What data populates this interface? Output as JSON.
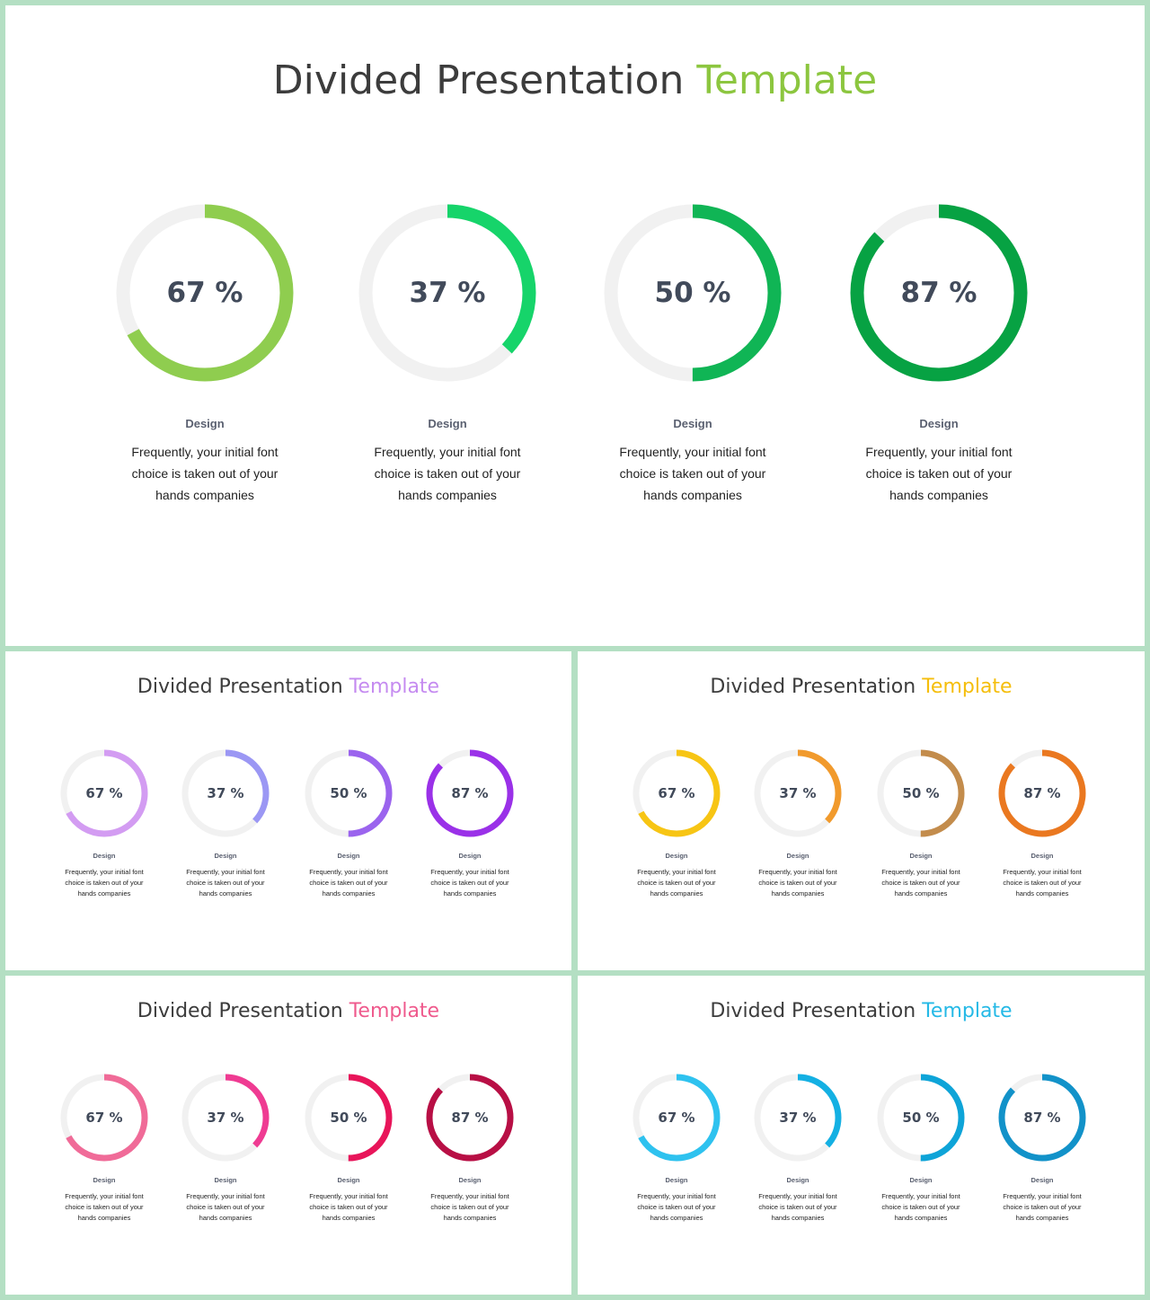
{
  "slides": [
    {
      "title_main": "Divided Presentation",
      "title_accent": "Template",
      "accent_color": "#8cc63f",
      "items": [
        {
          "percent": 67,
          "label": "67 %",
          "color": "#8fcd4f",
          "caption": "Design",
          "text": "Frequently, your initial font choice is taken out of your hands companies"
        },
        {
          "percent": 37,
          "label": "37 %",
          "color": "#16d46a",
          "caption": "Design",
          "text": "Frequently, your initial font choice is taken out of your hands companies"
        },
        {
          "percent": 50,
          "label": "50 %",
          "color": "#10b555",
          "caption": "Design",
          "text": "Frequently, your initial font choice is taken out of your hands companies"
        },
        {
          "percent": 87,
          "label": "87 %",
          "color": "#07a243",
          "caption": "Design",
          "text": "Frequently, your initial font choice is taken out of your hands companies"
        }
      ]
    },
    {
      "title_main": "Divided Presentation",
      "title_accent": "Template",
      "accent_color": "#c58bf0",
      "items": [
        {
          "percent": 67,
          "label": "67 %",
          "color": "#d39cf2",
          "caption": "Design",
          "text": "Frequently, your initial font choice is taken out of your hands companies"
        },
        {
          "percent": 37,
          "label": "37 %",
          "color": "#9b97f4",
          "caption": "Design",
          "text": "Frequently, your initial font choice is taken out of your hands companies"
        },
        {
          "percent": 50,
          "label": "50 %",
          "color": "#9b64ee",
          "caption": "Design",
          "text": "Frequently, your initial font choice is taken out of your hands companies"
        },
        {
          "percent": 87,
          "label": "87 %",
          "color": "#9a31e8",
          "caption": "Design",
          "text": "Frequently, your initial font choice is taken out of your hands companies"
        }
      ]
    },
    {
      "title_main": "Divided Presentation",
      "title_accent": "Template",
      "accent_color": "#f5be0c",
      "items": [
        {
          "percent": 67,
          "label": "67 %",
          "color": "#f7c514",
          "caption": "Design",
          "text": "Frequently, your initial font choice is taken out of your hands companies"
        },
        {
          "percent": 37,
          "label": "37 %",
          "color": "#f19a2c",
          "caption": "Design",
          "text": "Frequently, your initial font choice is taken out of your hands companies"
        },
        {
          "percent": 50,
          "label": "50 %",
          "color": "#c38c4c",
          "caption": "Design",
          "text": "Frequently, your initial font choice is taken out of your hands companies"
        },
        {
          "percent": 87,
          "label": "87 %",
          "color": "#ea7820",
          "caption": "Design",
          "text": "Frequently, your initial font choice is taken out of your hands companies"
        }
      ]
    },
    {
      "title_main": "Divided Presentation",
      "title_accent": "Template",
      "accent_color": "#ef5a8d",
      "items": [
        {
          "percent": 67,
          "label": "67 %",
          "color": "#f06b98",
          "caption": "Design",
          "text": "Frequently, your initial font choice is taken out of your hands companies"
        },
        {
          "percent": 37,
          "label": "37 %",
          "color": "#ef3b92",
          "caption": "Design",
          "text": "Frequently, your initial font choice is taken out of your hands companies"
        },
        {
          "percent": 50,
          "label": "50 %",
          "color": "#e8155a",
          "caption": "Design",
          "text": "Frequently, your initial font choice is taken out of your hands companies"
        },
        {
          "percent": 87,
          "label": "87 %",
          "color": "#b80f45",
          "caption": "Design",
          "text": "Frequently, your initial font choice is taken out of your hands companies"
        }
      ]
    },
    {
      "title_main": "Divided Presentation",
      "title_accent": "Template",
      "accent_color": "#25b9e6",
      "items": [
        {
          "percent": 67,
          "label": "67 %",
          "color": "#2ec2ef",
          "caption": "Design",
          "text": "Frequently, your initial font choice is taken out of your hands companies"
        },
        {
          "percent": 37,
          "label": "37 %",
          "color": "#14b0e3",
          "caption": "Design",
          "text": "Frequently, your initial font choice is taken out of your hands companies"
        },
        {
          "percent": 50,
          "label": "50 %",
          "color": "#0ea4d8",
          "caption": "Design",
          "text": "Frequently, your initial font choice is taken out of your hands companies"
        },
        {
          "percent": 87,
          "label": "87 %",
          "color": "#1292c9",
          "caption": "Design",
          "text": "Frequently, your initial font choice is taken out of your hands companies"
        }
      ]
    }
  ]
}
